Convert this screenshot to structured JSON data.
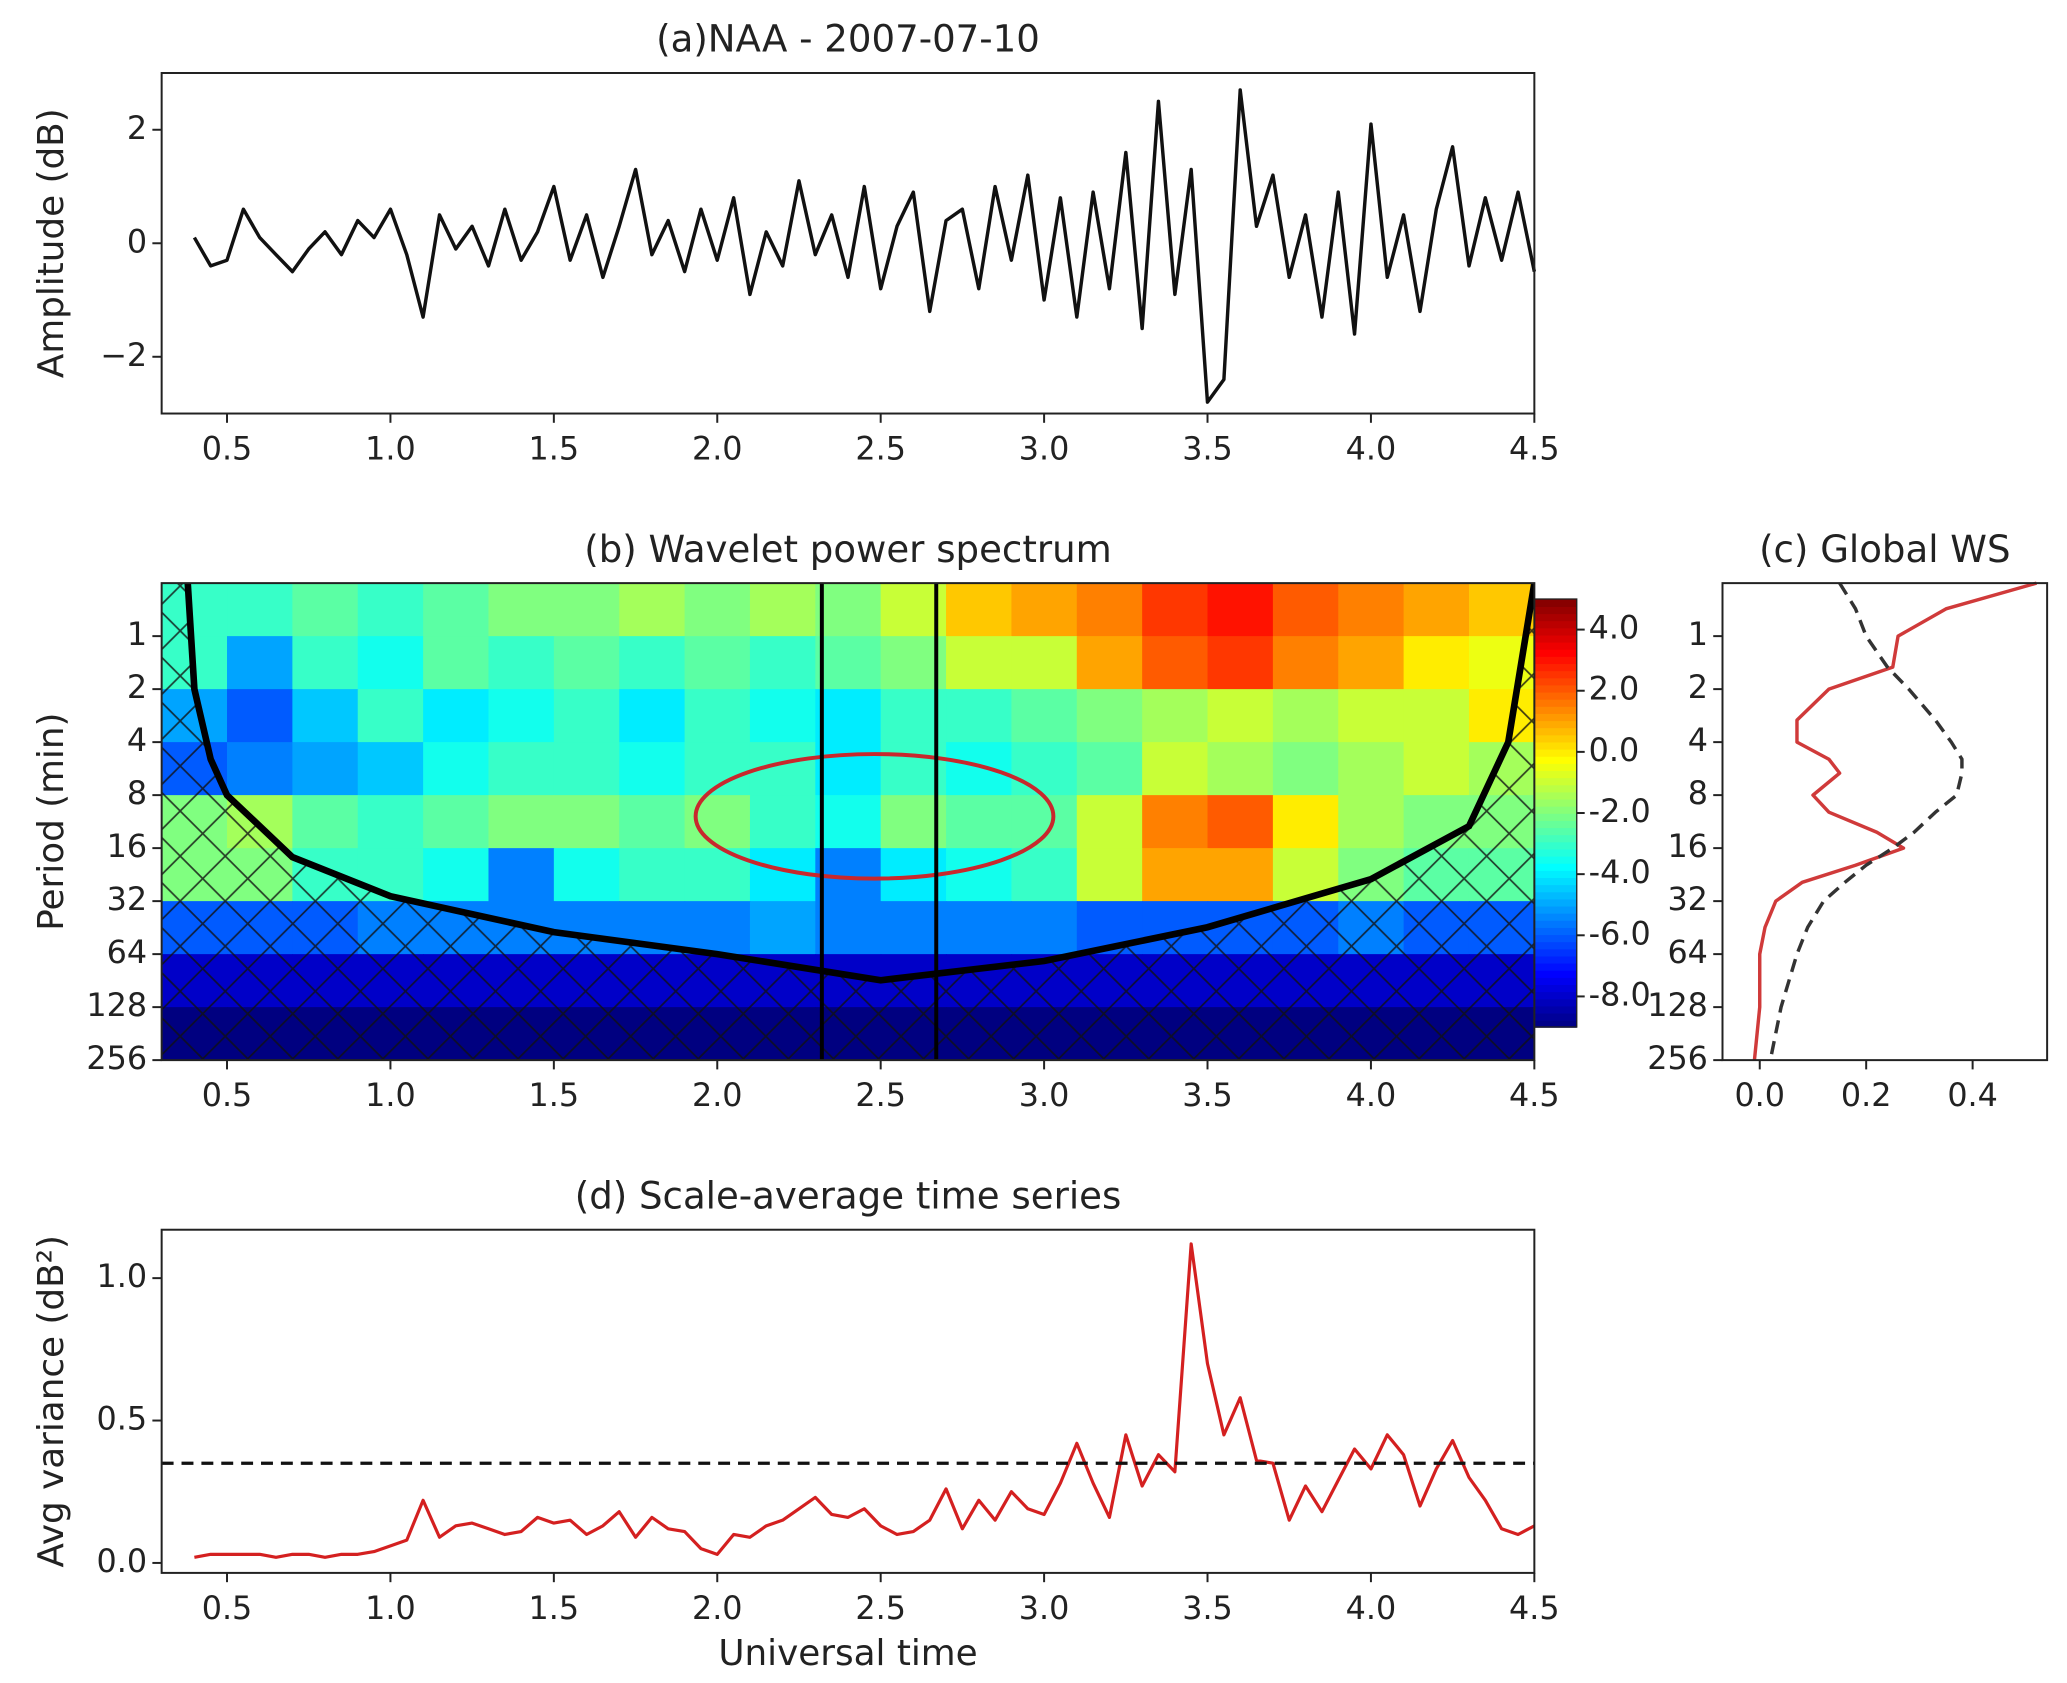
{
  "chart_data": [
    {
      "type": "line",
      "title": "(a)NAA - 2007-07-10",
      "ylabel": "Amplitude (dB)",
      "x": [
        0.4,
        0.45,
        0.5,
        0.55,
        0.6,
        0.65,
        0.7,
        0.75,
        0.8,
        0.85,
        0.9,
        0.95,
        1.0,
        1.05,
        1.1,
        1.15,
        1.2,
        1.25,
        1.3,
        1.35,
        1.4,
        1.45,
        1.5,
        1.55,
        1.6,
        1.65,
        1.7,
        1.75,
        1.8,
        1.85,
        1.9,
        1.95,
        2.0,
        2.05,
        2.1,
        2.15,
        2.2,
        2.25,
        2.3,
        2.35,
        2.4,
        2.45,
        2.5,
        2.55,
        2.6,
        2.65,
        2.7,
        2.75,
        2.8,
        2.85,
        2.9,
        2.95,
        3.0,
        3.05,
        3.1,
        3.15,
        3.2,
        3.25,
        3.3,
        3.35,
        3.4,
        3.45,
        3.5,
        3.55,
        3.6,
        3.65,
        3.7,
        3.75,
        3.8,
        3.85,
        3.9,
        3.95,
        4.0,
        4.05,
        4.1,
        4.15,
        4.2,
        4.25,
        4.3,
        4.35,
        4.4,
        4.45,
        4.5
      ],
      "series": [
        {
          "color": "#111111",
          "values": [
            0.1,
            -0.4,
            -0.3,
            0.6,
            0.1,
            -0.2,
            -0.5,
            -0.1,
            0.2,
            -0.2,
            0.4,
            0.1,
            0.6,
            -0.2,
            -1.3,
            0.5,
            -0.1,
            0.3,
            -0.4,
            0.6,
            -0.3,
            0.2,
            1.0,
            -0.3,
            0.5,
            -0.6,
            0.3,
            1.3,
            -0.2,
            0.4,
            -0.5,
            0.6,
            -0.3,
            0.8,
            -0.9,
            0.2,
            -0.4,
            1.1,
            -0.2,
            0.5,
            -0.6,
            1.0,
            -0.8,
            0.3,
            0.9,
            -1.2,
            0.4,
            0.6,
            -0.8,
            1.0,
            -0.3,
            1.2,
            -1.0,
            0.8,
            -1.3,
            0.9,
            -0.8,
            1.6,
            -1.5,
            2.5,
            -0.9,
            1.3,
            -2.8,
            -2.4,
            2.7,
            0.3,
            1.2,
            -0.6,
            0.5,
            -1.3,
            0.9,
            -1.6,
            2.1,
            -0.6,
            0.5,
            -1.2,
            0.6,
            1.7,
            -0.4,
            0.8,
            -0.3,
            0.9,
            -0.5
          ]
        }
      ],
      "xlim": [
        0.3,
        4.5
      ],
      "xticks": [
        0.5,
        {
          "value": 1,
          "label": "1.0"
        },
        1.5,
        {
          "value": 2,
          "label": "2.0"
        },
        2.5,
        {
          "value": 3,
          "label": "3.0"
        },
        3.5,
        {
          "value": 4,
          "label": "4.0"
        },
        4.5
      ],
      "ylim": [
        -3,
        3
      ],
      "yticks": [
        {
          "value": -2,
          "label": "−2"
        },
        0,
        2
      ]
    },
    {
      "type": "heatmap",
      "title": "(b) Wavelet power spectrum",
      "ylabel": "Period (min)",
      "xbins": [
        0.3,
        0.5,
        0.7,
        0.9,
        1.1,
        1.3,
        1.5,
        1.7,
        1.9,
        2.1,
        2.3,
        2.5,
        2.7,
        2.9,
        3.1,
        3.3,
        3.5,
        3.7,
        3.9,
        4.1,
        4.3,
        4.5
      ],
      "ybins": [
        0.5,
        1,
        2,
        4,
        8,
        16,
        32,
        64,
        128,
        256
      ],
      "values": [
        [
          -3,
          -3,
          -2.5,
          -3,
          -2.5,
          -2,
          -2,
          -1.5,
          -2,
          -1.5,
          -2,
          -1,
          0.5,
          1,
          1.5,
          2.5,
          3,
          2,
          1.5,
          1,
          0.5
        ],
        [
          -3,
          -5,
          -3,
          -3.5,
          -2.5,
          -3,
          -2.5,
          -3,
          -2.5,
          -3,
          -2.5,
          -2,
          -1,
          -1,
          1,
          2,
          2.5,
          1.5,
          1,
          0,
          -0.5
        ],
        [
          -5,
          -6,
          -4.5,
          -3,
          -4,
          -3.5,
          -3,
          -4,
          -3,
          -3.5,
          -4,
          -3,
          -3,
          -2.5,
          -2,
          -1.5,
          -1,
          -1.5,
          -1,
          -1,
          0
        ],
        [
          -6,
          -5.5,
          -5,
          -4.5,
          -3.5,
          -3,
          -3,
          -3.5,
          -3,
          -3,
          -4,
          -3,
          -3.5,
          -3,
          -2.5,
          -1,
          -1.5,
          -2,
          -1.5,
          -1,
          -1.5
        ],
        [
          -2,
          -1.5,
          -2.5,
          -3,
          -2.5,
          -2,
          -2,
          -2.5,
          -2,
          -3,
          -3.5,
          -2,
          -2.5,
          -2.5,
          -1,
          1.5,
          2,
          0,
          -1.5,
          -2,
          -2
        ],
        [
          -2,
          -2,
          -3,
          -3,
          -3.5,
          -5.5,
          -3.5,
          -3,
          -3,
          -4,
          -5.5,
          -4,
          -3.5,
          -3,
          -1,
          1,
          1,
          -1,
          -2,
          -2.5,
          -2.5
        ],
        [
          -6,
          -6,
          -6,
          -5.5,
          -5.5,
          -5.5,
          -5.5,
          -5.5,
          -5.5,
          -5,
          -5.5,
          -5.5,
          -5.5,
          -5.5,
          -6,
          -6,
          -6,
          -6,
          -5.5,
          -6,
          -6
        ],
        [
          -8,
          -8,
          -8,
          -8,
          -8,
          -8,
          -8,
          -8,
          -8,
          -8,
          -8,
          -8,
          -8,
          -8,
          -8,
          -8,
          -8,
          -8,
          -8,
          -8,
          -8
        ],
        [
          -9,
          -9,
          -9,
          -9,
          -9,
          -9,
          -9,
          -9,
          -9,
          -9,
          -9,
          -9,
          -9,
          -9,
          -9,
          -9,
          -9,
          -9,
          -9,
          -9,
          -9
        ]
      ],
      "clim": [
        -9,
        5
      ],
      "cticks": [
        {
          "value": 4,
          "label": "4.0"
        },
        {
          "value": 2,
          "label": "2.0"
        },
        {
          "value": 0,
          "label": "0.0"
        },
        {
          "value": -2,
          "label": "-2.0"
        },
        {
          "value": -4,
          "label": "-4.0"
        },
        {
          "value": -6,
          "label": "-6.0"
        },
        {
          "value": -8,
          "label": "-8.0"
        }
      ],
      "coi": {
        "color": "#000000",
        "x": [
          0.38,
          0.4,
          0.45,
          0.5,
          0.7,
          1.0,
          1.5,
          2.0,
          2.5,
          3.0,
          3.5,
          4.0,
          4.3,
          4.42,
          4.5
        ],
        "values": [
          0.5,
          2,
          5,
          8,
          18,
          30,
          48,
          64,
          90,
          70,
          45,
          24,
          12,
          4,
          0.5
        ]
      },
      "vlines": [
        2.32,
        2.67
      ],
      "xlim": [
        0.3,
        4.5
      ],
      "xticks": [
        0.5,
        {
          "value": 1,
          "label": "1.0"
        },
        1.5,
        {
          "value": 2,
          "label": "2.0"
        },
        2.5,
        {
          "value": 3,
          "label": "3.0"
        },
        3.5,
        {
          "value": 4,
          "label": "4.0"
        },
        4.5
      ],
      "ylim": [
        0.5,
        256
      ],
      "ylog": true,
      "yticks": [
        1,
        2,
        4,
        8,
        16,
        32,
        64,
        128,
        256
      ]
    },
    {
      "type": "profile",
      "title": "(c) Global WS",
      "y": [
        0.5,
        0.7,
        1,
        1.5,
        2,
        3,
        4,
        5,
        6,
        8,
        10,
        13,
        16,
        20,
        25,
        32,
        45,
        64,
        128,
        256
      ],
      "series": [
        {
          "color": "#d03a3a",
          "values": [
            0.52,
            0.35,
            0.26,
            0.25,
            0.13,
            0.07,
            0.07,
            0.13,
            0.15,
            0.1,
            0.13,
            0.22,
            0.27,
            0.18,
            0.08,
            0.03,
            0.01,
            0.0,
            0.0,
            -0.01
          ]
        },
        {
          "color": "#333333",
          "dash": true,
          "values": [
            0.15,
            0.18,
            0.2,
            0.24,
            0.28,
            0.33,
            0.36,
            0.38,
            0.38,
            0.37,
            0.33,
            0.29,
            0.25,
            0.2,
            0.16,
            0.12,
            0.09,
            0.07,
            0.04,
            0.02
          ]
        }
      ],
      "xlim": [
        -0.07,
        0.54
      ],
      "xticks": [
        {
          "value": 0,
          "label": "0.0"
        },
        0.2,
        0.4
      ],
      "ylim": [
        0.5,
        256
      ],
      "ylog": true,
      "yticks": [
        1,
        2,
        4,
        8,
        16,
        32,
        64,
        128,
        256
      ]
    },
    {
      "type": "line",
      "title": "(d) Scale-average time series",
      "ylabel": "Avg variance (dB²)",
      "xlabel": "Universal time",
      "x": [
        0.4,
        0.45,
        0.5,
        0.55,
        0.6,
        0.65,
        0.7,
        0.75,
        0.8,
        0.85,
        0.9,
        0.95,
        1.0,
        1.05,
        1.1,
        1.15,
        1.2,
        1.25,
        1.3,
        1.35,
        1.4,
        1.45,
        1.5,
        1.55,
        1.6,
        1.65,
        1.7,
        1.75,
        1.8,
        1.85,
        1.9,
        1.95,
        2.0,
        2.05,
        2.1,
        2.15,
        2.2,
        2.25,
        2.3,
        2.35,
        2.4,
        2.45,
        2.5,
        2.55,
        2.6,
        2.65,
        2.7,
        2.75,
        2.8,
        2.85,
        2.9,
        2.95,
        3.0,
        3.05,
        3.1,
        3.15,
        3.2,
        3.25,
        3.3,
        3.35,
        3.4,
        3.45,
        3.5,
        3.55,
        3.6,
        3.65,
        3.7,
        3.75,
        3.8,
        3.85,
        3.9,
        3.95,
        4.0,
        4.05,
        4.1,
        4.15,
        4.2,
        4.25,
        4.3,
        4.35,
        4.4,
        4.45,
        4.5
      ],
      "series": [
        {
          "color": "#d42020",
          "values": [
            0.02,
            0.03,
            0.03,
            0.03,
            0.03,
            0.02,
            0.03,
            0.03,
            0.02,
            0.03,
            0.03,
            0.04,
            0.06,
            0.08,
            0.22,
            0.09,
            0.13,
            0.14,
            0.12,
            0.1,
            0.11,
            0.16,
            0.14,
            0.15,
            0.1,
            0.13,
            0.18,
            0.09,
            0.16,
            0.12,
            0.11,
            0.05,
            0.03,
            0.1,
            0.09,
            0.13,
            0.15,
            0.19,
            0.23,
            0.17,
            0.16,
            0.19,
            0.13,
            0.1,
            0.11,
            0.15,
            0.26,
            0.12,
            0.22,
            0.15,
            0.25,
            0.19,
            0.17,
            0.28,
            0.42,
            0.28,
            0.16,
            0.45,
            0.27,
            0.38,
            0.32,
            1.12,
            0.7,
            0.45,
            0.58,
            0.36,
            0.35,
            0.15,
            0.27,
            0.18,
            0.29,
            0.4,
            0.33,
            0.45,
            0.38,
            0.2,
            0.33,
            0.43,
            0.3,
            0.22,
            0.12,
            0.1,
            0.13
          ]
        }
      ],
      "hline": 0.35,
      "xlim": [
        0.3,
        4.5
      ],
      "xticks": [
        0.5,
        {
          "value": 1,
          "label": "1.0"
        },
        1.5,
        {
          "value": 2,
          "label": "2.0"
        },
        2.5,
        {
          "value": 3,
          "label": "3.0"
        },
        3.5,
        {
          "value": 4,
          "label": "4.0"
        },
        4.5
      ],
      "ylim": [
        -0.035,
        1.17
      ],
      "yticks": [
        {
          "value": 0,
          "label": "0.0"
        },
        0.5,
        {
          "value": 1,
          "label": "1.0"
        }
      ]
    }
  ]
}
